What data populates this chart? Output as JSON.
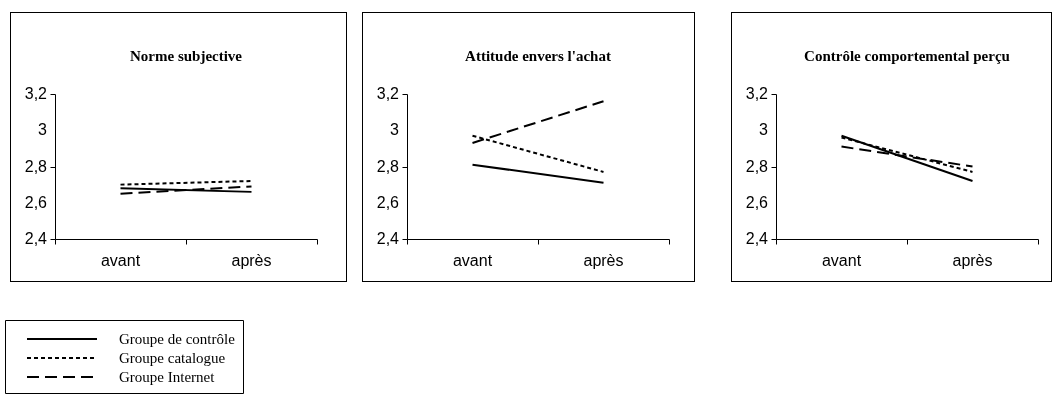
{
  "chart_data": [
    {
      "type": "line",
      "title": "Norme subjective",
      "categories": [
        "avant",
        "après"
      ],
      "ylim": [
        2.4,
        3.2
      ],
      "yticks": [
        {
          "value": 2.4,
          "label": "2,4"
        },
        {
          "value": 2.6,
          "label": "2,6"
        },
        {
          "value": 2.8,
          "label": "2,8"
        },
        {
          "value": 3,
          "label": "3"
        },
        {
          "value": 3.2,
          "label": "3,2"
        }
      ],
      "grid": false,
      "legend": "bottom left",
      "marker": "none",
      "series": [
        {
          "name": "Groupe de contrôle",
          "color": "#000000",
          "line_style": "solid",
          "values": [
            2.68,
            2.66
          ]
        },
        {
          "name": "Groupe catalogue",
          "color": "#000000",
          "line_style": "dotted",
          "values": [
            2.7,
            2.72
          ]
        },
        {
          "name": "Groupe Internet",
          "color": "#000000",
          "line_style": "dashed",
          "values": [
            2.65,
            2.69
          ]
        }
      ]
    },
    {
      "type": "line",
      "title": "Attitude envers l'achat",
      "categories": [
        "avant",
        "après"
      ],
      "ylim": [
        2.4,
        3.2
      ],
      "yticks": [
        {
          "value": 2.4,
          "label": "2,4"
        },
        {
          "value": 2.6,
          "label": "2,6"
        },
        {
          "value": 2.8,
          "label": "2,8"
        },
        {
          "value": 3,
          "label": "3"
        },
        {
          "value": 3.2,
          "label": "3,2"
        }
      ],
      "grid": false,
      "marker": "none",
      "series": [
        {
          "color": "#000000",
          "line_style": "solid",
          "values": [
            2.81,
            2.71
          ]
        },
        {
          "color": "#000000",
          "line_style": "dotted",
          "values": [
            2.97,
            2.77
          ]
        },
        {
          "color": "#000000",
          "line_style": "dashed",
          "values": [
            2.93,
            3.16
          ]
        }
      ]
    },
    {
      "type": "line",
      "title": "Contrôle comportemental\nperçu",
      "categories": [
        "avant",
        "après"
      ],
      "ylim": [
        2.4,
        3.2
      ],
      "yticks": [
        {
          "value": 2.4,
          "label": "2,4"
        },
        {
          "value": 2.6,
          "label": "2,6"
        },
        {
          "value": 2.8,
          "label": "2,8"
        },
        {
          "value": 3,
          "label": "3"
        },
        {
          "value": 3.2,
          "label": "3,2"
        }
      ],
      "grid": false,
      "marker": "none",
      "series": [
        {
          "color": "#000000",
          "line_style": "solid",
          "values": [
            2.97,
            2.72
          ]
        },
        {
          "color": "#000000",
          "line_style": "dotted",
          "values": [
            2.96,
            2.77
          ]
        },
        {
          "color": "#000000",
          "line_style": "dashed",
          "values": [
            2.91,
            2.8
          ]
        }
      ]
    }
  ]
}
